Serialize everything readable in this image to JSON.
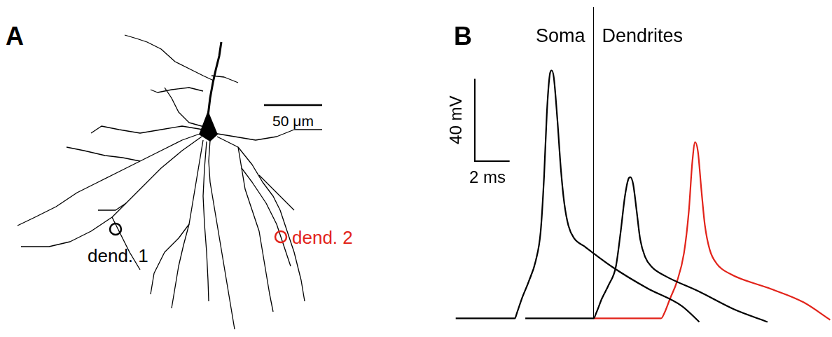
{
  "panel_a": {
    "label": "A",
    "scale_bar": {
      "value": 50,
      "label": "50 μm"
    },
    "sites": [
      {
        "label": "dend. 1",
        "color": "#000000"
      },
      {
        "label": "dend. 2",
        "color": "#e2231a"
      }
    ]
  },
  "chart_data": {
    "type": "line",
    "panel_label": "B",
    "annotations": [
      "Soma",
      "Dendrites"
    ],
    "tick_labels": false,
    "grid": false,
    "scale_bars": {
      "x": {
        "value": 2,
        "label": "2 ms"
      },
      "y": {
        "value": 40,
        "label": "40 mV"
      }
    },
    "series": [
      {
        "color": "#000000",
        "x": [
          0,
          3.4,
          3.52,
          3.8,
          4.2,
          4.6,
          4.88,
          5.08,
          5.24,
          5.4,
          5.52,
          5.64,
          5.84,
          6.04,
          6.24,
          6.48,
          6.8,
          7.4,
          9,
          11,
          13,
          14
        ],
        "values": [
          0,
          0,
          2.7,
          9.6,
          18,
          28,
          42,
          69,
          100,
          118,
          120.5,
          117,
          97,
          73,
          56,
          45,
          39,
          35,
          25,
          14.7,
          6,
          -1.7
        ]
      },
      {
        "color": "#000000",
        "x": [
          4,
          7.92,
          8.08,
          8.4,
          8.8,
          9.2,
          9.48,
          9.72,
          9.92,
          10.04,
          10.2,
          10.4,
          10.6,
          10.88,
          11.28,
          12,
          14,
          16,
          17.92
        ],
        "values": [
          0,
          0,
          2.7,
          9.6,
          16.4,
          24.9,
          42,
          59,
          67.6,
          68.6,
          65.2,
          52.2,
          38.6,
          30,
          24.9,
          20.8,
          13,
          4.4,
          -1.7
        ]
      },
      {
        "color": "#e2231a",
        "x": [
          7.92,
          11.8,
          12,
          12.32,
          12.72,
          13.12,
          13.4,
          13.6,
          13.76,
          13.92,
          14.12,
          14.32,
          14.6,
          15,
          15.8,
          18,
          20,
          21.52
        ],
        "values": [
          0,
          0,
          2.7,
          9.6,
          18,
          31.7,
          52.2,
          76,
          85.7,
          81.2,
          62.5,
          45.4,
          33.4,
          26.6,
          21.5,
          14.7,
          7.8,
          -0.7
        ]
      }
    ]
  }
}
